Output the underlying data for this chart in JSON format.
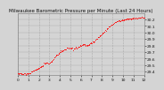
{
  "title": "Milwaukee Barometric Pressure per Minute (Last 24 Hours)",
  "background_color": "#d4d4d4",
  "plot_bg_color": "#d4d4d4",
  "grid_color": "#aaaaaa",
  "line_color": "#ff0000",
  "num_points": 200,
  "x_start": 0,
  "x_end": 1440,
  "y_start": 29.35,
  "y_end": 30.3,
  "y_ticks": [
    29.4,
    29.5,
    29.6,
    29.7,
    29.8,
    29.9,
    30.0,
    30.1,
    30.2
  ],
  "y_tick_labels": [
    "29.4",
    "29.5",
    "29.6",
    "29.7",
    "29.8",
    "29.9",
    "30.0",
    "30.1",
    "30.2"
  ],
  "x_tick_positions": [
    0,
    120,
    240,
    360,
    480,
    600,
    720,
    840,
    960,
    1080,
    1200,
    1320,
    1440
  ],
  "x_tick_labels": [
    "0",
    "1",
    "2",
    "3",
    "4",
    "5",
    "6",
    "7",
    "8",
    "9",
    "10",
    "11",
    "12"
  ],
  "marker_size": 1.2,
  "title_fontsize": 4.0,
  "tick_fontsize": 3.2,
  "shape_points": [
    [
      0,
      29.37
    ],
    [
      60,
      29.36
    ],
    [
      120,
      29.37
    ],
    [
      150,
      29.39
    ],
    [
      180,
      29.42
    ],
    [
      210,
      29.43
    ],
    [
      240,
      29.45
    ],
    [
      270,
      29.48
    ],
    [
      300,
      29.52
    ],
    [
      330,
      29.54
    ],
    [
      360,
      29.53
    ],
    [
      390,
      29.56
    ],
    [
      420,
      29.62
    ],
    [
      450,
      29.67
    ],
    [
      480,
      29.7
    ],
    [
      510,
      29.72
    ],
    [
      540,
      29.74
    ],
    [
      570,
      29.76
    ],
    [
      600,
      29.76
    ],
    [
      630,
      29.75
    ],
    [
      660,
      29.76
    ],
    [
      690,
      29.77
    ],
    [
      720,
      29.8
    ],
    [
      750,
      29.81
    ],
    [
      780,
      29.8
    ],
    [
      810,
      29.82
    ],
    [
      840,
      29.84
    ],
    [
      870,
      29.86
    ],
    [
      900,
      29.9
    ],
    [
      930,
      29.94
    ],
    [
      960,
      29.98
    ],
    [
      990,
      30.02
    ],
    [
      1020,
      30.06
    ],
    [
      1050,
      30.1
    ],
    [
      1080,
      30.13
    ],
    [
      1110,
      30.15
    ],
    [
      1140,
      30.17
    ],
    [
      1170,
      30.18
    ],
    [
      1200,
      30.19
    ],
    [
      1230,
      30.2
    ],
    [
      1260,
      30.21
    ],
    [
      1290,
      30.21
    ],
    [
      1320,
      30.22
    ],
    [
      1350,
      30.22
    ],
    [
      1440,
      30.23
    ]
  ]
}
